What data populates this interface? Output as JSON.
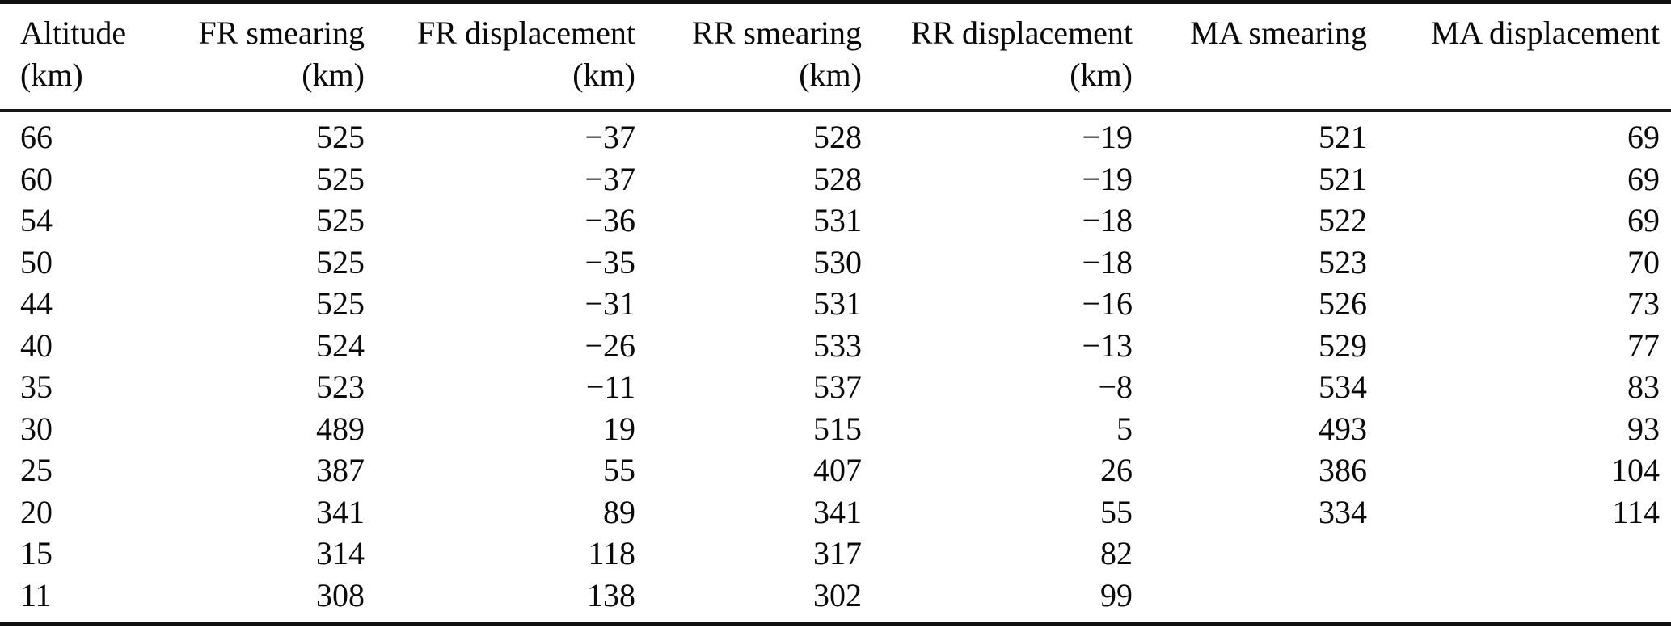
{
  "table": {
    "columns": [
      {
        "key": "altitude",
        "label": "Altitude",
        "unit": "(km)"
      },
      {
        "key": "fr-smearing",
        "label": "FR smearing",
        "unit": "(km)"
      },
      {
        "key": "fr-displacement",
        "label": "FR displacement",
        "unit": "(km)"
      },
      {
        "key": "rr-smearing",
        "label": "RR smearing",
        "unit": "(km)"
      },
      {
        "key": "rr-displacement",
        "label": "RR displacement",
        "unit": "(km)"
      },
      {
        "key": "ma-smearing",
        "label": "MA smearing",
        "unit": ""
      },
      {
        "key": "ma-displacement",
        "label": "MA displacement",
        "unit": ""
      }
    ],
    "rows": [
      [
        "66",
        "525",
        "−37",
        "528",
        "−19",
        "521",
        "69"
      ],
      [
        "60",
        "525",
        "−37",
        "528",
        "−19",
        "521",
        "69"
      ],
      [
        "54",
        "525",
        "−36",
        "531",
        "−18",
        "522",
        "69"
      ],
      [
        "50",
        "525",
        "−35",
        "530",
        "−18",
        "523",
        "70"
      ],
      [
        "44",
        "525",
        "−31",
        "531",
        "−16",
        "526",
        "73"
      ],
      [
        "40",
        "524",
        "−26",
        "533",
        "−13",
        "529",
        "77"
      ],
      [
        "35",
        "523",
        "−11",
        "537",
        "−8",
        "534",
        "83"
      ],
      [
        "30",
        "489",
        "19",
        "515",
        "5",
        "493",
        "93"
      ],
      [
        "25",
        "387",
        "55",
        "407",
        "26",
        "386",
        "104"
      ],
      [
        "20",
        "341",
        "89",
        "341",
        "55",
        "334",
        "114"
      ],
      [
        "15",
        "314",
        "118",
        "317",
        "82",
        "",
        ""
      ],
      [
        "11",
        "308",
        "138",
        "302",
        "99",
        "",
        ""
      ]
    ],
    "colors": {
      "text": "#0a0a0a",
      "rule": "#101010",
      "background": "#ffffff"
    }
  }
}
